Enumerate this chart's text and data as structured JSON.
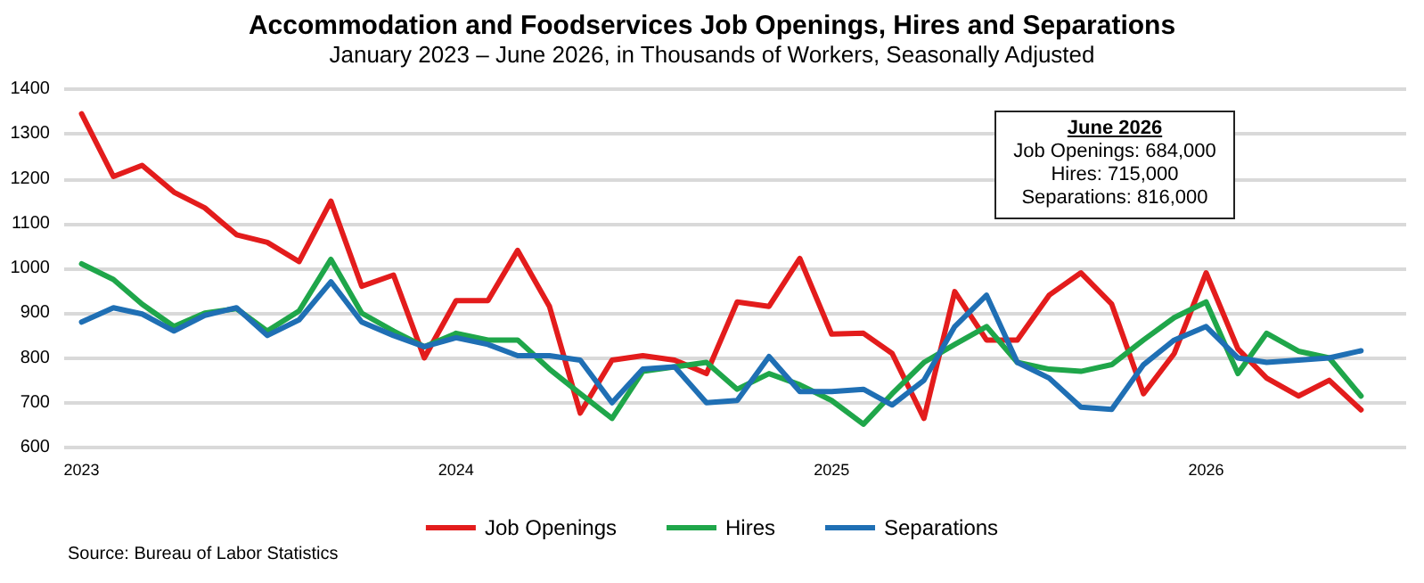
{
  "chart_data": {
    "type": "line",
    "title": "Accommodation and Foodservices Job Openings, Hires and Separations",
    "subtitle": "January 2023 – June 2026, in Thousands of Workers, Seasonally Adjusted",
    "x": [
      "2023-01",
      "2023-02",
      "2023-03",
      "2023-04",
      "2023-05",
      "2023-06",
      "2023-07",
      "2023-08",
      "2023-09",
      "2023-10",
      "2023-11",
      "2023-12",
      "2024-01",
      "2024-02",
      "2024-03",
      "2024-04",
      "2024-05",
      "2024-06",
      "2024-07",
      "2024-08",
      "2024-09",
      "2024-10",
      "2024-11",
      "2024-12",
      "2025-01",
      "2025-02",
      "2025-03",
      "2025-04",
      "2025-05",
      "2025-06",
      "2025-07",
      "2025-08",
      "2025-09",
      "2025-10",
      "2025-11",
      "2025-12",
      "2026-01",
      "2026-02",
      "2026-03",
      "2026-04",
      "2026-05",
      "2026-06"
    ],
    "series": [
      {
        "name": "Job Openings",
        "color": "#e31c1c",
        "values": [
          1345,
          1205,
          1230,
          1170,
          1135,
          1075,
          1058,
          1015,
          1150,
          960,
          985,
          800,
          928,
          928,
          1040,
          915,
          677,
          795,
          805,
          795,
          765,
          925,
          915,
          1022,
          853,
          855,
          810,
          665,
          948,
          840,
          840,
          940,
          990,
          920,
          720,
          810,
          990,
          820,
          755,
          715,
          750,
          684
        ]
      },
      {
        "name": "Hires",
        "color": "#1fa64a",
        "values": [
          1010,
          975,
          920,
          870,
          900,
          910,
          860,
          905,
          1020,
          900,
          860,
          825,
          855,
          840,
          840,
          775,
          720,
          665,
          770,
          780,
          790,
          730,
          765,
          740,
          705,
          652,
          720,
          790,
          830,
          870,
          790,
          775,
          770,
          785,
          840,
          890,
          925,
          765,
          855,
          815,
          800,
          715
        ]
      },
      {
        "name": "Separations",
        "color": "#1f6fb4",
        "values": [
          880,
          912,
          898,
          860,
          895,
          912,
          850,
          885,
          970,
          880,
          850,
          825,
          845,
          830,
          805,
          805,
          795,
          700,
          775,
          780,
          700,
          705,
          803,
          725,
          725,
          730,
          695,
          750,
          870,
          940,
          790,
          755,
          690,
          685,
          785,
          840,
          870,
          800,
          790,
          795,
          800,
          816
        ]
      }
    ],
    "xlim": [
      "2022-12-15",
      "2026-07-15"
    ],
    "xticks": [
      {
        "value": "2023-01",
        "label": "2023"
      },
      {
        "value": "2024-01",
        "label": "2024"
      },
      {
        "value": "2025-01",
        "label": "2025"
      },
      {
        "value": "2026-01",
        "label": "2026"
      }
    ],
    "ylim": [
      600,
      1400
    ],
    "yticks": [
      600,
      700,
      800,
      900,
      1000,
      1100,
      1200,
      1300,
      1400
    ],
    "grid": "y",
    "legend": "bottom",
    "marker": "none",
    "line_style": "solid",
    "annotations": [
      "June 2026",
      "Job Openings: 684,000",
      "Hires: 715,000",
      "Separations: 816,000",
      "Source: Bureau of Labor Statistics"
    ]
  }
}
